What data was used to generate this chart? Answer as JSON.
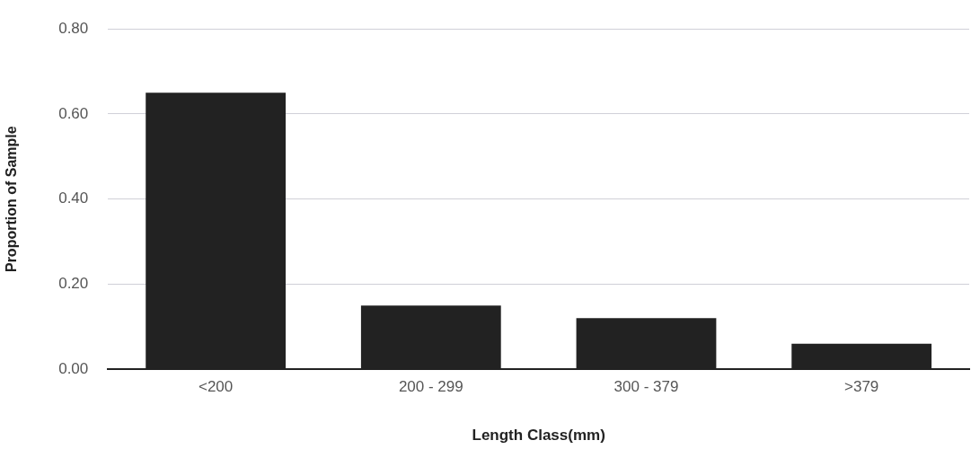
{
  "chart_data": {
    "type": "bar",
    "xlabel": "Length Class(mm)",
    "ylabel": "Proportion of Sample",
    "categories": [
      "<200",
      "200 - 299",
      "300 - 379",
      ">379"
    ],
    "values": [
      0.65,
      0.15,
      0.12,
      0.06
    ],
    "color": "#222222",
    "ylim": [
      0,
      0.8
    ],
    "yticks": [
      {
        "value": 0,
        "label": "0.00"
      },
      {
        "value": 0.2,
        "label": "0.20"
      },
      {
        "value": 0.4,
        "label": "0.40"
      },
      {
        "value": 0.6,
        "label": "0.60"
      },
      {
        "value": 0.8,
        "label": "0.80"
      }
    ],
    "grid": "y",
    "legend": false
  }
}
